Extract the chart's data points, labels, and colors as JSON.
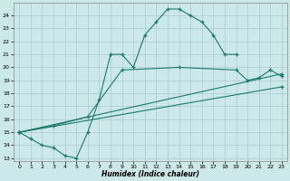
{
  "line1_x": [
    0,
    1,
    2,
    3,
    4,
    5,
    6,
    7,
    8,
    9,
    10,
    11,
    12,
    13,
    14,
    15,
    16,
    17,
    18,
    19
  ],
  "line1_y": [
    15,
    14.5,
    14,
    13.8,
    13.2,
    13,
    15,
    17.5,
    21,
    21,
    20,
    22.5,
    23.5,
    24.5,
    24.5,
    24,
    23.5,
    22.5,
    21,
    21
  ],
  "line2_x": [
    0,
    3,
    6,
    9,
    14,
    19,
    20,
    21,
    22,
    23
  ],
  "line2_y": [
    15,
    15.5,
    16.2,
    19.8,
    20.0,
    19.8,
    19.0,
    19.2,
    19.8,
    19.3
  ],
  "line3_x": [
    0,
    23
  ],
  "line3_y": [
    15,
    19.5
  ],
  "line4_x": [
    0,
    23
  ],
  "line4_y": [
    15,
    18.5
  ],
  "line_color": "#1a7a6e",
  "bg_color": "#cce8e8",
  "grid_color": "#aacccc",
  "xlabel": "Humidex (Indice chaleur)",
  "xlim": [
    -0.5,
    23.5
  ],
  "ylim": [
    12.8,
    25.0
  ],
  "yticks": [
    13,
    14,
    15,
    16,
    17,
    18,
    19,
    20,
    21,
    22,
    23,
    24
  ],
  "xticks": [
    0,
    1,
    2,
    3,
    4,
    5,
    6,
    7,
    8,
    9,
    10,
    11,
    12,
    13,
    14,
    15,
    16,
    17,
    18,
    19,
    20,
    21,
    22,
    23
  ]
}
